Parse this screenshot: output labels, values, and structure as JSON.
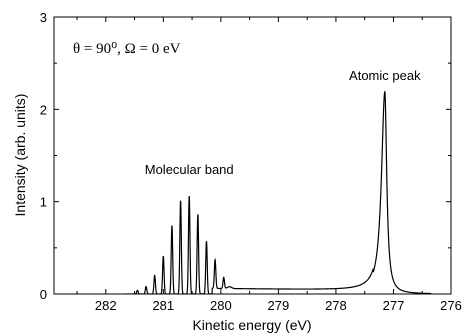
{
  "chart_data": {
    "type": "line",
    "title": "",
    "params_text": "θ = 90⁰,    Ω = 0 eV",
    "xlabel": "Kinetic energy (eV)",
    "ylabel": "Intensity (arb. units)",
    "xlim": [
      282.9,
      276.0
    ],
    "ylim": [
      0,
      3
    ],
    "x_reversed": true,
    "x_ticks": [
      282,
      281,
      280,
      279,
      278,
      277,
      276
    ],
    "y_ticks": [
      0,
      1,
      2,
      3
    ],
    "grid": false,
    "annotations": [
      {
        "text": "Atomic peak",
        "x": 277.15,
        "y": 2.32
      },
      {
        "text": "Molecular band",
        "x": 280.55,
        "y": 1.3
      }
    ],
    "series": [
      {
        "molecular_peaks": [
          {
            "x": 281.45,
            "y": 0.04
          },
          {
            "x": 281.3,
            "y": 0.08
          },
          {
            "x": 281.15,
            "y": 0.2
          },
          {
            "x": 281.0,
            "y": 0.41
          },
          {
            "x": 280.85,
            "y": 0.74
          },
          {
            "x": 280.7,
            "y": 1.01
          },
          {
            "x": 280.55,
            "y": 1.06
          },
          {
            "x": 280.4,
            "y": 0.86
          },
          {
            "x": 280.25,
            "y": 0.57
          },
          {
            "x": 280.1,
            "y": 0.31
          },
          {
            "x": 279.95,
            "y": 0.12
          }
        ],
        "atomic_peak": {
          "x": 277.15,
          "y": 2.19
        }
      }
    ]
  }
}
